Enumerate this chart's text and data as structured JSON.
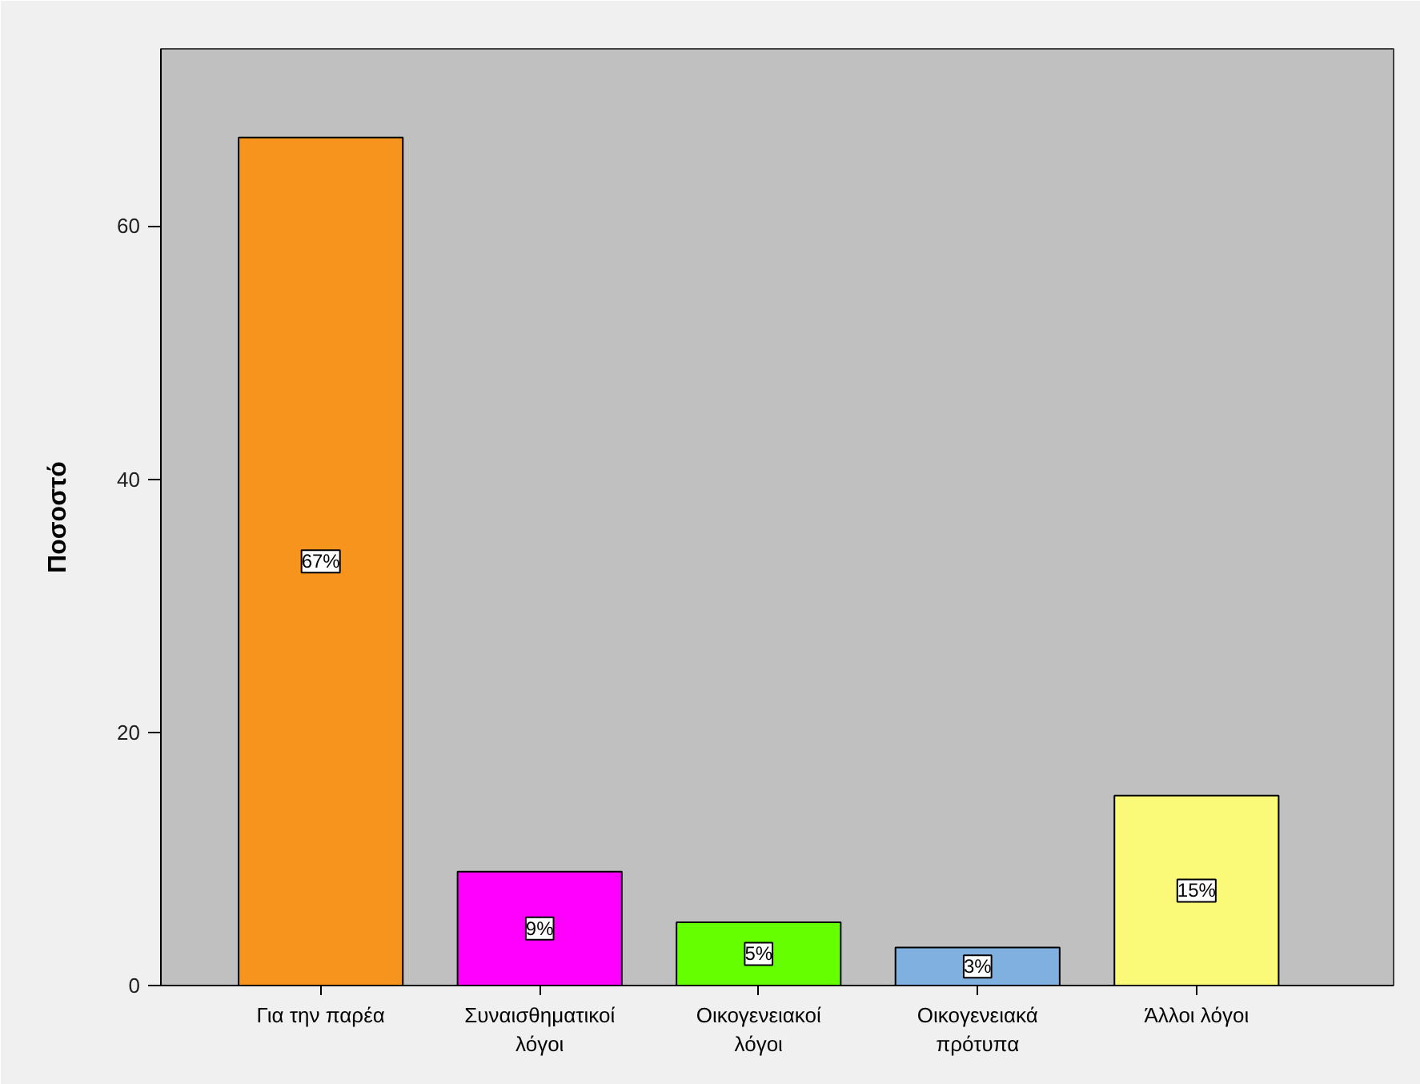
{
  "chart_data": {
    "type": "bar",
    "ylabel": "Ποσοστό",
    "categories": [
      "Για την παρέα",
      "Συναισθηματικοί λόγοι",
      "Οικογενειακοί λόγοι",
      "Οικογενειακά πρότυπα",
      "Άλλοι λόγοι"
    ],
    "values": [
      67,
      9,
      5,
      3,
      15
    ],
    "colors": [
      "#f7941d",
      "#ff00ff",
      "#66ff00",
      "#80b0e0",
      "#fafa78"
    ],
    "value_labels": [
      "67%",
      "9%",
      "5%",
      "3%",
      "15%"
    ],
    "ylim": [
      0,
      74
    ],
    "yticks": [
      0,
      20,
      40,
      60
    ],
    "grid": false
  }
}
